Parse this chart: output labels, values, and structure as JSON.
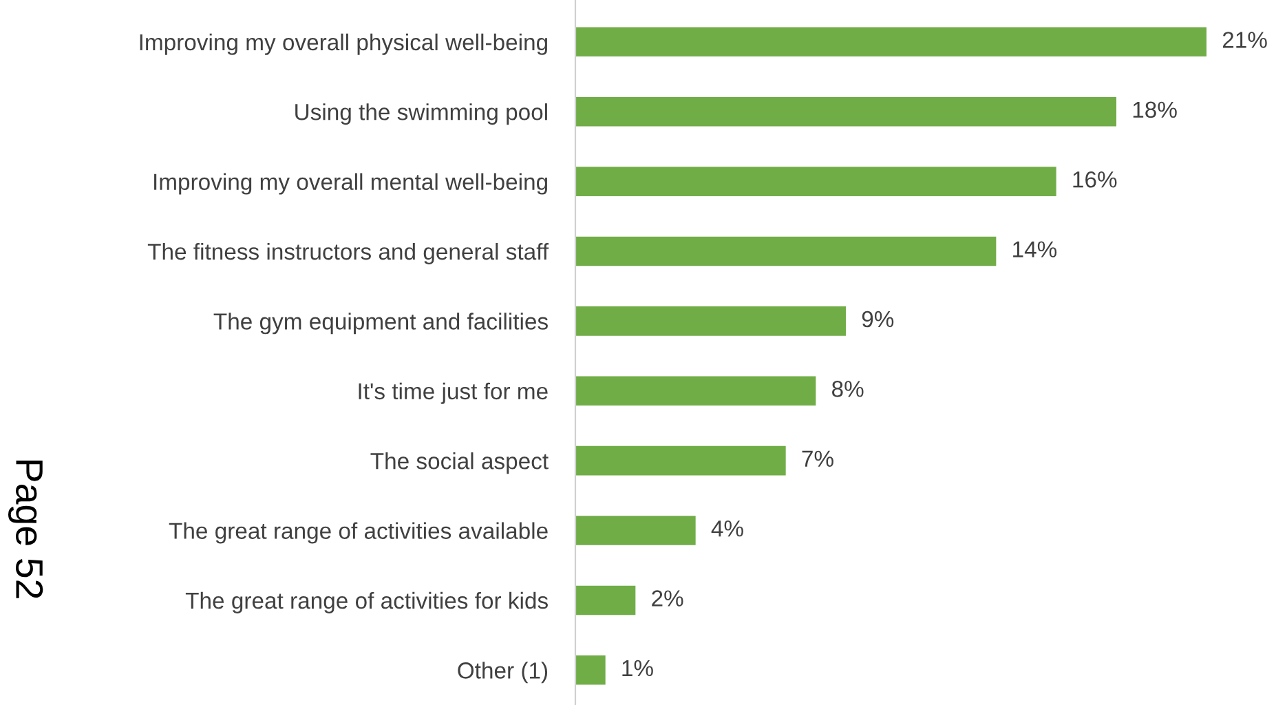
{
  "chart_data": {
    "type": "bar",
    "orientation": "horizontal",
    "categories": [
      "Improving my overall physical well-being",
      "Using the swimming pool",
      "Improving my overall mental well-being",
      "The fitness instructors and general staff",
      "The gym equipment and facilities",
      "It's time just for me",
      "The social aspect",
      "The great range of activities available",
      "The great range of activities for kids",
      "Other (1)"
    ],
    "values": [
      21,
      18,
      16,
      14,
      9,
      8,
      7,
      4,
      2,
      1
    ],
    "value_labels": [
      "21%",
      "18%",
      "16%",
      "14%",
      "9%",
      "8%",
      "7%",
      "4%",
      "2%",
      "1%"
    ],
    "color": "#70ad47",
    "tick_labels": "y",
    "annotations": [
      "Page 52"
    ]
  }
}
